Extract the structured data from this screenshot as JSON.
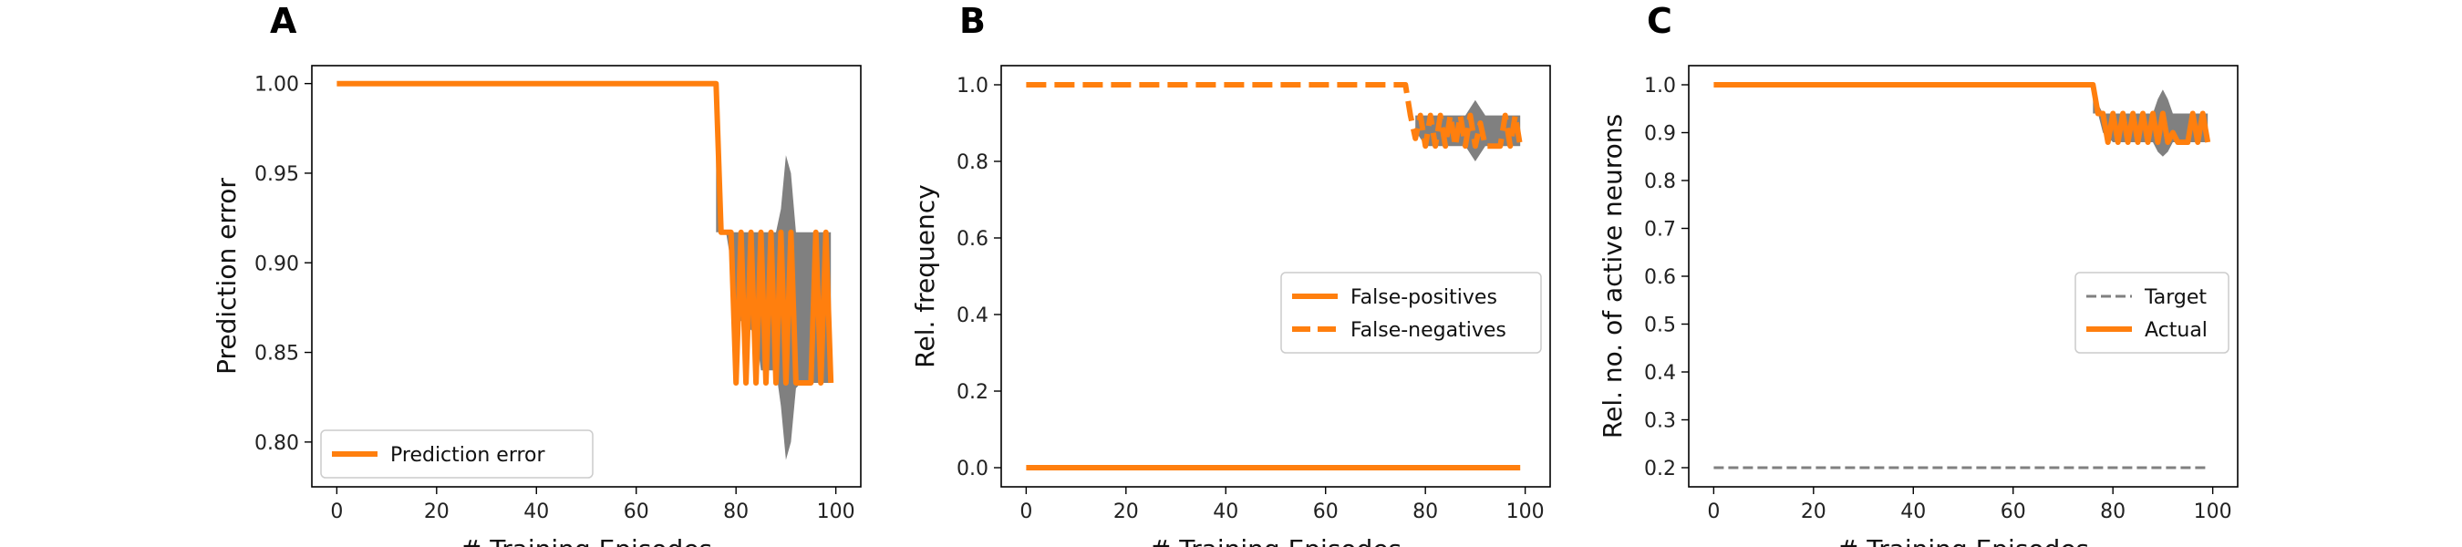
{
  "chart_data": [
    {
      "type": "line",
      "panel": "A",
      "xlabel": "# Training Episodes",
      "ylabel": "Prediction error",
      "xlim": [
        -5,
        105
      ],
      "ylim": [
        0.775,
        1.01
      ],
      "xticks": [
        0,
        20,
        40,
        60,
        80,
        100
      ],
      "yticks": [
        0.8,
        0.85,
        0.9,
        0.95,
        1.0
      ],
      "ytick_labels": [
        "0.80",
        "0.85",
        "0.90",
        "0.95",
        "1.00"
      ],
      "legend": "lower-left",
      "grid": false,
      "band": {
        "color": "#808080",
        "x": [
          76,
          77,
          78,
          79,
          80,
          84,
          85,
          88,
          89,
          90,
          91,
          92,
          93,
          94,
          95,
          96,
          99
        ],
        "low": [
          0.917,
          0.917,
          0.917,
          0.9,
          0.87,
          0.86,
          0.84,
          0.84,
          0.82,
          0.79,
          0.8,
          0.83,
          0.833,
          0.833,
          0.833,
          0.833,
          0.833
        ],
        "high": [
          1.0,
          0.917,
          0.917,
          0.917,
          0.917,
          0.917,
          0.917,
          0.917,
          0.93,
          0.96,
          0.95,
          0.917,
          0.917,
          0.917,
          0.917,
          0.917,
          0.917
        ]
      },
      "series": [
        {
          "name": "Prediction error",
          "color": "#ff7f0e",
          "dash": "solid",
          "x": [
            0,
            76,
            77,
            78,
            79,
            80,
            81,
            82,
            83,
            84,
            85,
            86,
            87,
            88,
            89,
            90,
            91,
            92,
            93,
            94,
            95,
            96,
            97,
            98,
            99
          ],
          "y": [
            1.0,
            1.0,
            0.917,
            0.917,
            0.917,
            0.833,
            0.917,
            0.833,
            0.917,
            0.833,
            0.917,
            0.833,
            0.917,
            0.833,
            0.917,
            0.833,
            0.917,
            0.833,
            0.833,
            0.833,
            0.833,
            0.917,
            0.833,
            0.917,
            0.833
          ]
        }
      ]
    },
    {
      "type": "line",
      "panel": "B",
      "xlabel": "# Training Episodes",
      "ylabel": "Rel. frequency",
      "xlim": [
        -5,
        105
      ],
      "ylim": [
        -0.05,
        1.05
      ],
      "xticks": [
        0,
        20,
        40,
        60,
        80,
        100
      ],
      "yticks": [
        0.0,
        0.2,
        0.4,
        0.6,
        0.8,
        1.0
      ],
      "ytick_labels": [
        "0.0",
        "0.2",
        "0.4",
        "0.6",
        "0.8",
        "1.0"
      ],
      "legend": "center-right",
      "grid": false,
      "band": {
        "color": "#808080",
        "x": [
          78,
          80,
          82,
          84,
          86,
          88,
          89,
          90,
          91,
          92,
          93,
          94,
          96,
          98,
          99
        ],
        "low": [
          0.88,
          0.84,
          0.84,
          0.84,
          0.84,
          0.84,
          0.82,
          0.8,
          0.82,
          0.84,
          0.84,
          0.84,
          0.84,
          0.84,
          0.84
        ],
        "high": [
          0.92,
          0.92,
          0.92,
          0.92,
          0.92,
          0.92,
          0.94,
          0.96,
          0.94,
          0.92,
          0.92,
          0.92,
          0.92,
          0.92,
          0.92
        ]
      },
      "series": [
        {
          "name": "False-positives",
          "color": "#ff7f0e",
          "dash": "solid",
          "x": [
            0,
            99
          ],
          "y": [
            0.0,
            0.0
          ]
        },
        {
          "name": "False-negatives",
          "color": "#ff7f0e",
          "dash": "dashed",
          "x": [
            0,
            76,
            77,
            78,
            79,
            80,
            81,
            82,
            83,
            84,
            85,
            86,
            87,
            88,
            89,
            90,
            91,
            92,
            93,
            94,
            95,
            96,
            97,
            98,
            99
          ],
          "y": [
            1.0,
            1.0,
            0.92,
            0.86,
            0.92,
            0.84,
            0.92,
            0.84,
            0.92,
            0.84,
            0.92,
            0.84,
            0.92,
            0.84,
            0.92,
            0.84,
            0.9,
            0.84,
            0.84,
            0.84,
            0.84,
            0.92,
            0.84,
            0.92,
            0.84
          ]
        }
      ]
    },
    {
      "type": "line",
      "panel": "C",
      "xlabel": "# Training Episodes",
      "ylabel": "Rel. no. of active neurons",
      "xlim": [
        -5,
        105
      ],
      "ylim": [
        0.16,
        1.04
      ],
      "xticks": [
        0,
        20,
        40,
        60,
        80,
        100
      ],
      "yticks": [
        0.2,
        0.3,
        0.4,
        0.5,
        0.6,
        0.7,
        0.8,
        0.9,
        1.0
      ],
      "ytick_labels": [
        "0.2",
        "0.3",
        "0.4",
        "0.5",
        "0.6",
        "0.7",
        "0.8",
        "0.9",
        "1.0"
      ],
      "legend": "center-right",
      "grid": false,
      "band": {
        "color": "#808080",
        "x": [
          76,
          77,
          78,
          80,
          82,
          84,
          86,
          88,
          89,
          90,
          91,
          92,
          94,
          96,
          99
        ],
        "low": [
          0.94,
          0.94,
          0.9,
          0.88,
          0.88,
          0.88,
          0.88,
          0.88,
          0.86,
          0.85,
          0.86,
          0.88,
          0.88,
          0.88,
          0.88
        ],
        "high": [
          1.0,
          0.96,
          0.94,
          0.94,
          0.94,
          0.94,
          0.94,
          0.94,
          0.97,
          0.99,
          0.97,
          0.94,
          0.94,
          0.94,
          0.94
        ]
      },
      "series": [
        {
          "name": "Target",
          "color": "#808080",
          "dash": "dashed",
          "x": [
            0,
            99
          ],
          "y": [
            0.2,
            0.2
          ]
        },
        {
          "name": "Actual",
          "color": "#ff7f0e",
          "dash": "solid",
          "x": [
            0,
            76,
            77,
            78,
            79,
            80,
            81,
            82,
            83,
            84,
            85,
            86,
            87,
            88,
            89,
            90,
            91,
            92,
            93,
            94,
            95,
            96,
            97,
            98,
            99
          ],
          "y": [
            1.0,
            1.0,
            0.94,
            0.94,
            0.88,
            0.94,
            0.88,
            0.94,
            0.88,
            0.94,
            0.88,
            0.94,
            0.88,
            0.94,
            0.88,
            0.94,
            0.88,
            0.9,
            0.88,
            0.88,
            0.88,
            0.94,
            0.88,
            0.94,
            0.88
          ]
        }
      ]
    }
  ]
}
